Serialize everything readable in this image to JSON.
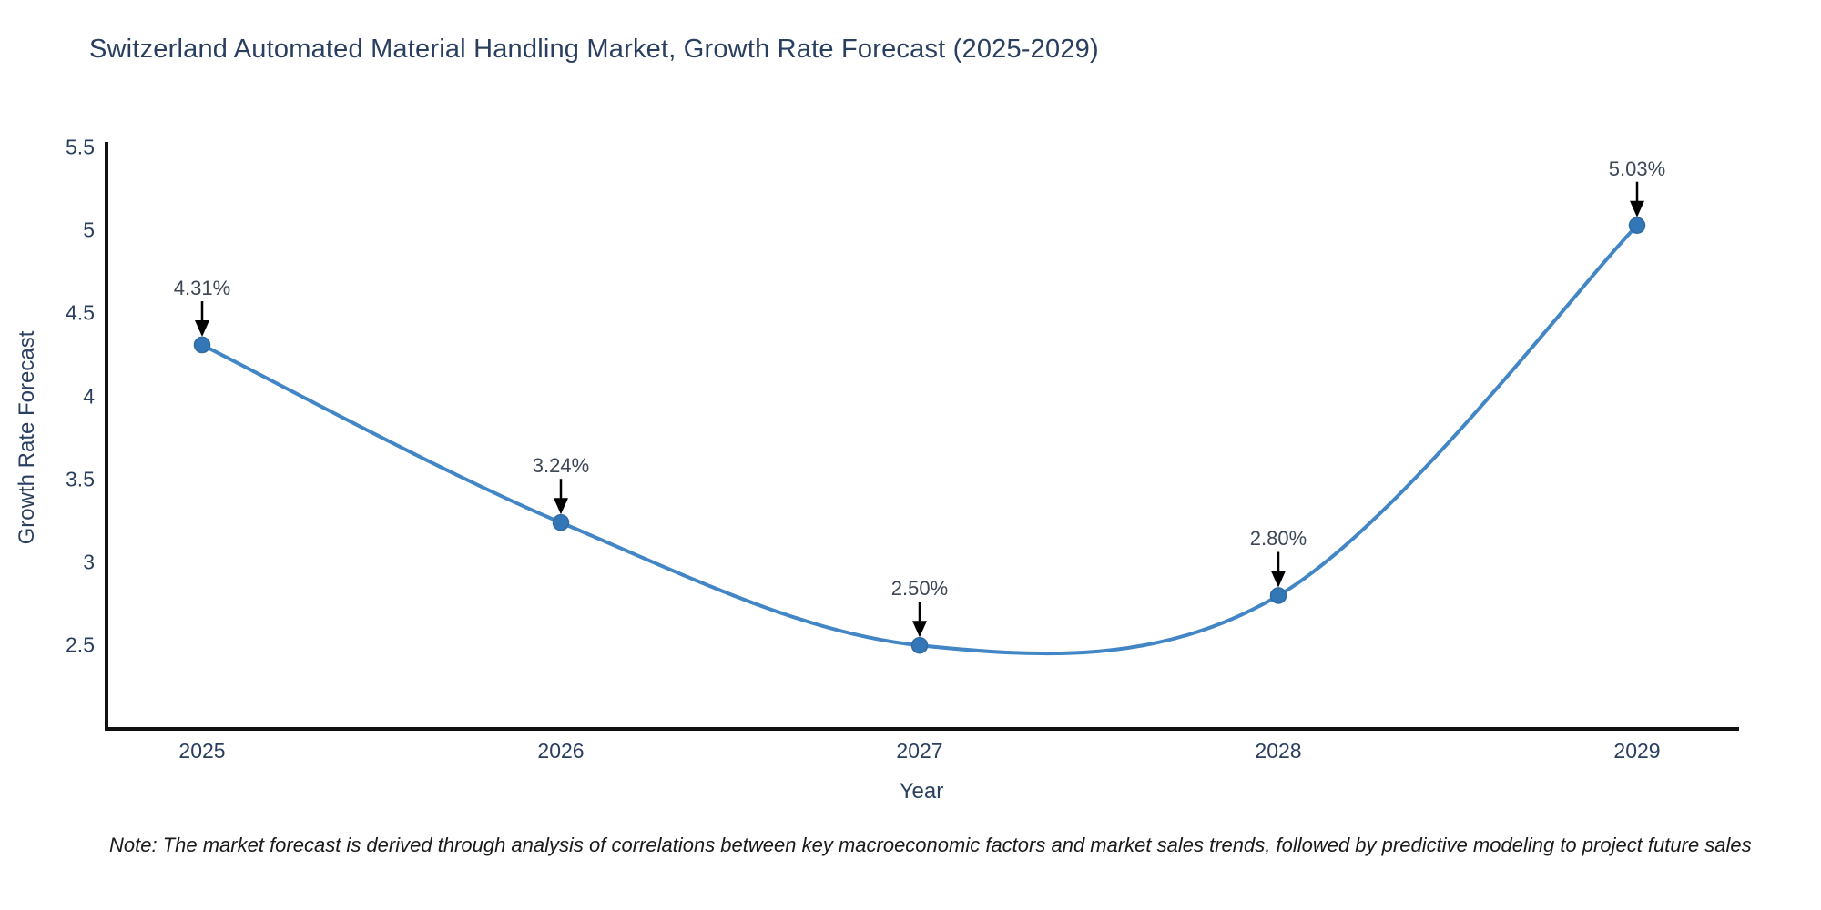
{
  "chart_data": {
    "type": "line",
    "title": "Switzerland Automated Material Handling Market, Growth Rate Forecast (2025-2029)",
    "xlabel": "Year",
    "ylabel": "Growth Rate Forecast",
    "categories": [
      "2025",
      "2026",
      "2027",
      "2028",
      "2029"
    ],
    "series": [
      {
        "name": "Growth Rate Forecast",
        "values": [
          4.31,
          3.24,
          2.5,
          2.8,
          5.03
        ],
        "point_labels": [
          "4.31%",
          "3.24%",
          "2.50%",
          "2.80%",
          "5.03%"
        ]
      }
    ],
    "yticks": [
      5.5,
      5,
      4.5,
      4,
      3.5,
      3,
      2.5
    ],
    "ytick_labels": [
      "5.5",
      "5",
      "4.5",
      "4",
      "3.5",
      "3",
      "2.5"
    ],
    "ylim": [
      2.0,
      5.5
    ],
    "grid": false,
    "legend": "none",
    "line_style": "spline",
    "marker_style": "circle",
    "colors": {
      "line": "#4286c5",
      "marker": "#3377b6",
      "marker_edge": "#2f6ba3",
      "axis": "#111111",
      "axis_text": "#2a3f5f",
      "annotation_text": "#3d4756",
      "annotation_arrow": "#000000",
      "background": "#ffffff"
    },
    "note": "Note: The market forecast is derived through analysis of correlations between key macroeconomic factors and market sales trends, followed by predictive modeling to project future sales"
  }
}
